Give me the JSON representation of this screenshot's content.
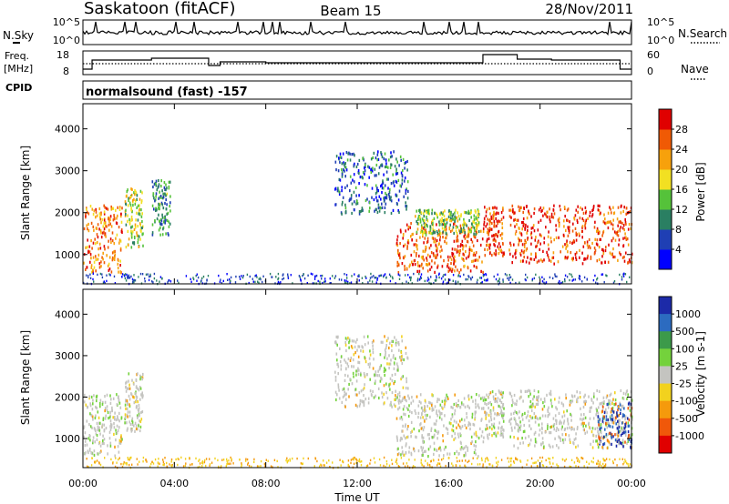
{
  "header": {
    "station": "Saskatoon (fitACF)",
    "beam": "Beam 15",
    "date": "28/Nov/2011"
  },
  "noise_panel": {
    "left_label": "N.Sky",
    "left_ticks": [
      "10^5",
      "10^0"
    ],
    "right_ticks": [
      "10^5",
      "10^0"
    ],
    "right_label": "N.Search"
  },
  "freq_panel": {
    "left_label_line1": "Freq.",
    "left_label_line2": "[MHz]",
    "left_ticks": [
      "18",
      "8"
    ],
    "right_ticks": [
      "60",
      "0"
    ],
    "right_label": "Nave"
  },
  "cpid": {
    "label": "CPID",
    "value": "normalsound (fast) -157"
  },
  "chart_data": [
    {
      "type": "heatmap",
      "name": "power",
      "ylabel": "Slant Range [km]",
      "yticks": [
        "1000",
        "2000",
        "3000",
        "4000"
      ],
      "ylim": [
        300,
        4600
      ],
      "xlim": [
        0,
        24
      ],
      "colorbar_label": "Power [dB]",
      "colorbar_ticks": [
        "4",
        "8",
        "12",
        "16",
        "20",
        "24",
        "28"
      ],
      "colorbar_colors": [
        "#0000ff",
        "#1f3fb4",
        "#2a7f62",
        "#55c23a",
        "#f2e022",
        "#f7a10c",
        "#f05a05",
        "#e00000"
      ],
      "echo_regions": [
        {
          "t": [
            0.0,
            1.7
          ],
          "r": [
            600,
            2200
          ],
          "level": 0.8
        },
        {
          "t": [
            1.8,
            2.6
          ],
          "r": [
            1200,
            2600
          ],
          "level": 0.5
        },
        {
          "t": [
            3.0,
            3.8
          ],
          "r": [
            1500,
            2800
          ],
          "level": 0.3
        },
        {
          "t": [
            11.0,
            14.2
          ],
          "r": [
            2000,
            3500
          ],
          "level": 0.2
        },
        {
          "t": [
            13.7,
            17.5
          ],
          "r": [
            600,
            1800
          ],
          "level": 0.85
        },
        {
          "t": [
            14.5,
            17.3
          ],
          "r": [
            1500,
            2100
          ],
          "level": 0.45
        },
        {
          "t": [
            17.5,
            18.4
          ],
          "r": [
            1000,
            2200
          ],
          "level": 0.9
        },
        {
          "t": [
            18.6,
            24.0
          ],
          "r": [
            800,
            2200
          ],
          "level": 0.9
        }
      ]
    },
    {
      "type": "heatmap",
      "name": "velocity",
      "ylabel": "Slant Range [km]",
      "yticks": [
        "1000",
        "2000",
        "3000",
        "4000"
      ],
      "ylim": [
        300,
        4600
      ],
      "xlim": [
        0,
        24
      ],
      "xlabel": "Time UT",
      "xticks": [
        "00:00",
        "04:00",
        "08:00",
        "12:00",
        "16:00",
        "20:00",
        "00:00"
      ],
      "colorbar_label": "Velocity [m s-1]",
      "colorbar_ticks": [
        "1000",
        "500",
        "100",
        "25",
        "-25",
        "-100",
        "-500",
        "-1000"
      ],
      "colorbar_colors": [
        "#1c2aa8",
        "#2c6bc0",
        "#3c9a4a",
        "#74d23c",
        "#c4c4c0",
        "#f2d21e",
        "#f59a0c",
        "#f0580a",
        "#e00000"
      ],
      "echo_regions": [
        {
          "t": [
            0.0,
            1.7
          ],
          "r": [
            600,
            2100
          ],
          "level": 0.5
        },
        {
          "t": [
            1.8,
            2.6
          ],
          "r": [
            1200,
            2600
          ],
          "level": 0.35
        },
        {
          "t": [
            11.0,
            14.2
          ],
          "r": [
            1800,
            3500
          ],
          "level": 0.5
        },
        {
          "t": [
            13.7,
            17.5
          ],
          "r": [
            600,
            2100
          ],
          "level": 0.5
        },
        {
          "t": [
            17.5,
            18.4
          ],
          "r": [
            1000,
            2200
          ],
          "level": 0.5
        },
        {
          "t": [
            18.6,
            24.0
          ],
          "r": [
            800,
            2200
          ],
          "level": 0.5
        },
        {
          "t": [
            22.5,
            24.0
          ],
          "r": [
            800,
            1900
          ],
          "level": 0.9
        }
      ]
    }
  ]
}
